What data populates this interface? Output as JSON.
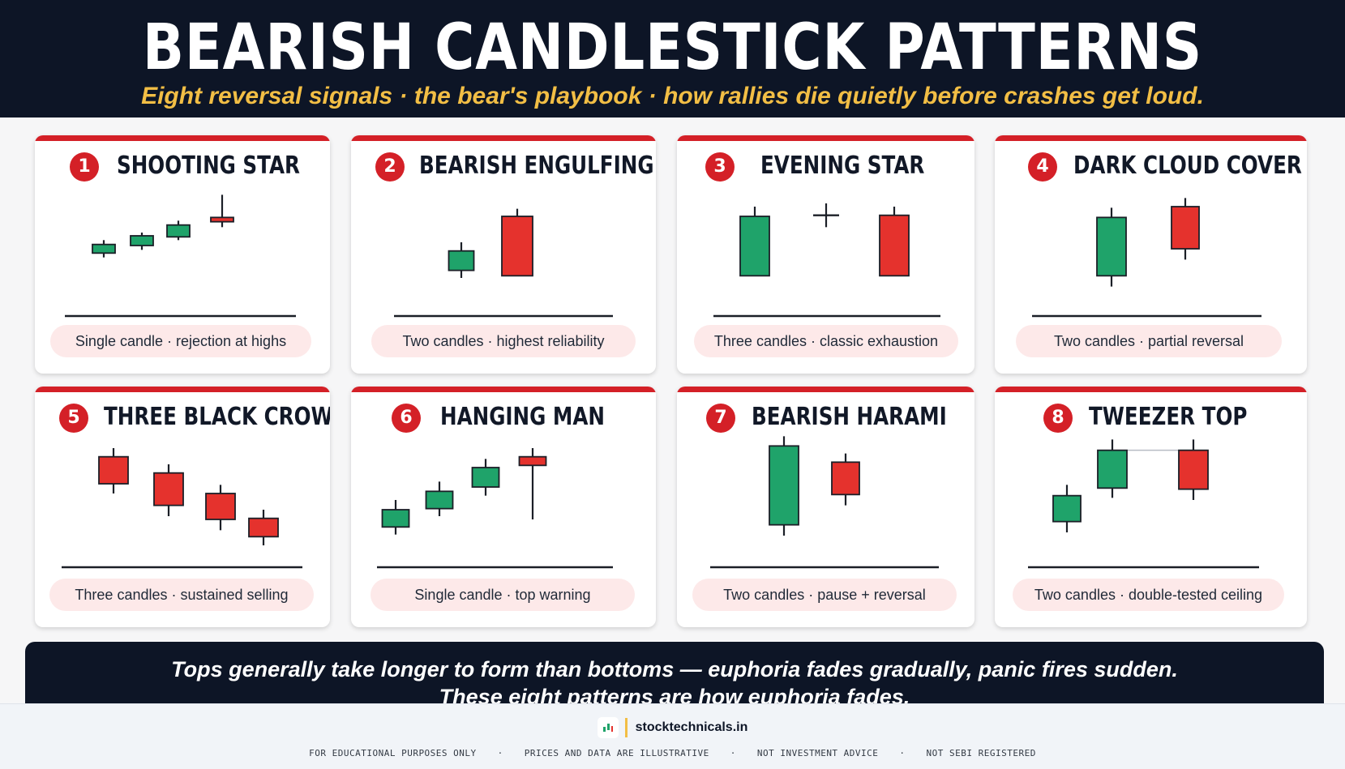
{
  "header": {
    "title": "BEARISH CANDLESTICK PATTERNS",
    "subtitle": "Eight reversal signals · the bear's playbook · how rallies die quietly before crashes get loud."
  },
  "colors": {
    "bull": "#1fa36a",
    "bear": "#e5322d",
    "accent": "#d42027",
    "dark": "#0d1526",
    "gold": "#f2be45"
  },
  "patterns": [
    {
      "number": "1",
      "title": "SHOOTING STAR",
      "caption": "Single candle · rejection at highs",
      "candles": [
        {
          "dir": "bull",
          "o": 56,
          "c": 64,
          "h": 68,
          "l": 52
        },
        {
          "dir": "bull",
          "o": 63,
          "c": 72,
          "h": 75,
          "l": 59
        },
        {
          "dir": "bull",
          "o": 71,
          "c": 82,
          "h": 86,
          "l": 68
        },
        {
          "dir": "bear",
          "o": 89,
          "c": 85,
          "h": 110,
          "l": 80
        }
      ]
    },
    {
      "number": "2",
      "title": "BEARISH ENGULFING",
      "caption": "Two candles · highest reliability",
      "candles": [
        {
          "dir": "bull",
          "o": 40,
          "c": 58,
          "h": 66,
          "l": 33
        },
        {
          "dir": "bear",
          "o": 90,
          "c": 35,
          "h": 97,
          "l": 35
        }
      ]
    },
    {
      "number": "3",
      "title": "EVENING STAR",
      "caption": "Three candles · classic exhaustion",
      "candles": [
        {
          "dir": "bull",
          "o": 35,
          "c": 90,
          "h": 99,
          "l": 35
        },
        {
          "dir": "doji",
          "o": 91,
          "c": 91,
          "h": 102,
          "l": 80
        },
        {
          "dir": "bear",
          "o": 91,
          "c": 35,
          "h": 99,
          "l": 35
        }
      ]
    },
    {
      "number": "4",
      "title": "DARK CLOUD COVER",
      "caption": "Two candles · partial reversal",
      "candles": [
        {
          "dir": "bull",
          "o": 35,
          "c": 89,
          "h": 98,
          "l": 25
        },
        {
          "dir": "bear",
          "o": 99,
          "c": 60,
          "h": 107,
          "l": 50
        }
      ]
    },
    {
      "number": "5",
      "title": "THREE BLACK CROWS",
      "caption": "Three candles · sustained selling",
      "candles": [
        {
          "dir": "bear",
          "o": 100,
          "c": 75,
          "h": 108,
          "l": 66
        },
        {
          "dir": "bear",
          "o": 85,
          "c": 55,
          "h": 93,
          "l": 45
        },
        {
          "dir": "bear",
          "o": 66,
          "c": 42,
          "h": 74,
          "l": 32
        },
        {
          "dir": "bear",
          "o": 43,
          "c": 26,
          "h": 51,
          "l": 18
        }
      ]
    },
    {
      "number": "6",
      "title": "HANGING MAN",
      "caption": "Single candle · top warning",
      "candles": [
        {
          "dir": "bull",
          "o": 35,
          "c": 51,
          "h": 60,
          "l": 28
        },
        {
          "dir": "bull",
          "o": 52,
          "c": 68,
          "h": 77,
          "l": 45
        },
        {
          "dir": "bull",
          "o": 72,
          "c": 90,
          "h": 98,
          "l": 64
        },
        {
          "dir": "bear",
          "o": 100,
          "c": 92,
          "h": 108,
          "l": 42
        }
      ]
    },
    {
      "number": "7",
      "title": "BEARISH HARAMI",
      "caption": "Two candles · pause + reversal",
      "candles": [
        {
          "dir": "bull",
          "o": 37,
          "c": 110,
          "h": 119,
          "l": 27
        },
        {
          "dir": "bear",
          "o": 95,
          "c": 65,
          "h": 103,
          "l": 55
        }
      ]
    },
    {
      "number": "8",
      "title": "TWEEZER TOP",
      "caption": "Two candles · double-tested ceiling",
      "candles": [
        {
          "dir": "bull",
          "o": 40,
          "c": 64,
          "h": 74,
          "l": 30
        },
        {
          "dir": "bull",
          "o": 71,
          "c": 106,
          "h": 116,
          "l": 62
        },
        {
          "dir": "bear",
          "o": 106,
          "c": 70,
          "h": 116,
          "l": 60
        }
      ]
    }
  ],
  "footer": {
    "line1": "Tops generally take longer to form than bottoms — euphoria fades gradually, panic fires sudden.",
    "line2": "These eight patterns are how euphoria fades."
  },
  "brand": {
    "name": "stocktechnicals.in",
    "disclaimers": [
      "FOR EDUCATIONAL PURPOSES ONLY",
      "PRICES AND DATA ARE ILLUSTRATIVE",
      "NOT INVESTMENT ADVICE",
      "NOT SEBI REGISTERED"
    ],
    "separator": "·"
  }
}
